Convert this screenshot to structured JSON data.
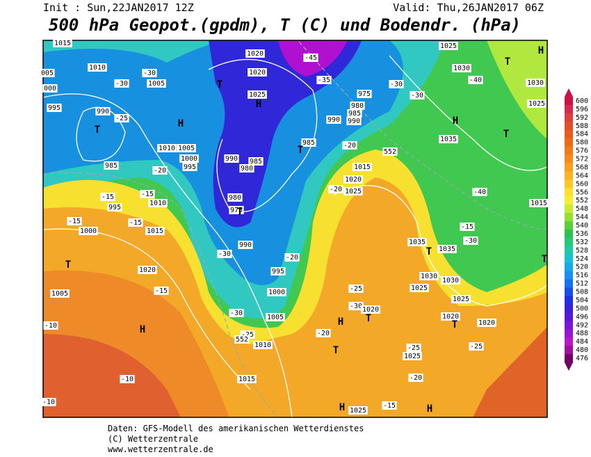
{
  "header": {
    "init": "Init : Sun,22JAN2017 12Z",
    "valid": "Valid: Thu,26JAN2017 06Z",
    "title": "500 hPa Geopot.(gpdm), T (C) und Bodendr. (hPa)"
  },
  "colorbar": {
    "ticks": [
      600,
      596,
      592,
      588,
      584,
      580,
      576,
      572,
      568,
      564,
      560,
      556,
      552,
      548,
      544,
      540,
      536,
      532,
      528,
      524,
      520,
      516,
      512,
      508,
      504,
      500,
      496,
      492,
      488,
      484,
      480,
      476
    ],
    "colors": [
      "#cc1144",
      "#d42a4f",
      "#dc4040",
      "#e0502a",
      "#e65c1e",
      "#ec6a18",
      "#f07c18",
      "#f48c1c",
      "#f7a020",
      "#f9b424",
      "#fbc82a",
      "#fde030",
      "#f4f030",
      "#c8ec30",
      "#94e030",
      "#5cd03a",
      "#30c050",
      "#28c878",
      "#20c8a8",
      "#18c0d0",
      "#18a8e8",
      "#1890f0",
      "#1870f0",
      "#1850e8",
      "#2030e0",
      "#3a20d8",
      "#5818d8",
      "#7818d8",
      "#9818d0",
      "#b818c8",
      "#a010a0",
      "#700060"
    ]
  },
  "map_labels": [
    "1015",
    "005",
    "1010",
    "000",
    "995",
    "990",
    "-25",
    "T",
    "985",
    "-30",
    "1005",
    "-30",
    "H",
    "T",
    "1020",
    "1020",
    "1025",
    "H",
    "-35",
    "-45",
    "975",
    "980",
    "985",
    "990",
    "990",
    "-30",
    "-30",
    "1025",
    "1030",
    "-40",
    "T",
    "H",
    "1030",
    "1025",
    "H",
    "T",
    "1035",
    "985",
    "T",
    "-20",
    "552",
    "1015",
    "1020",
    "1025",
    "-20",
    "1010",
    "1005",
    "1000",
    "995",
    "990",
    "985",
    "980",
    "980",
    "975",
    "T",
    "-20",
    "-15",
    "995",
    "-15",
    "1010",
    "-15",
    "1000",
    "-15",
    "1015",
    "T",
    "1020",
    "1005",
    "-15",
    "H",
    "-10",
    "990",
    "-30",
    "995",
    "1000",
    "-30",
    "1005",
    "-25",
    "1010",
    "552",
    "1015",
    "-10",
    "-10",
    "T",
    "-20",
    "-25",
    "-30",
    "1020",
    "T",
    "H",
    "1035",
    "1035",
    "T",
    "1030",
    "1025",
    "1030",
    "1025",
    "1020",
    "T",
    "1020",
    "-25",
    "-25",
    "1025",
    "-20",
    "-15",
    "H",
    "1025",
    "H",
    "1015",
    "-40",
    "-15",
    "-30",
    "T",
    "-20"
  ],
  "footer": [
    "Daten: GFS-Modell des amerikanischen Wetterdienstes",
    "(C) Wetterzentrale",
    "www.wetterzentrale.de"
  ]
}
